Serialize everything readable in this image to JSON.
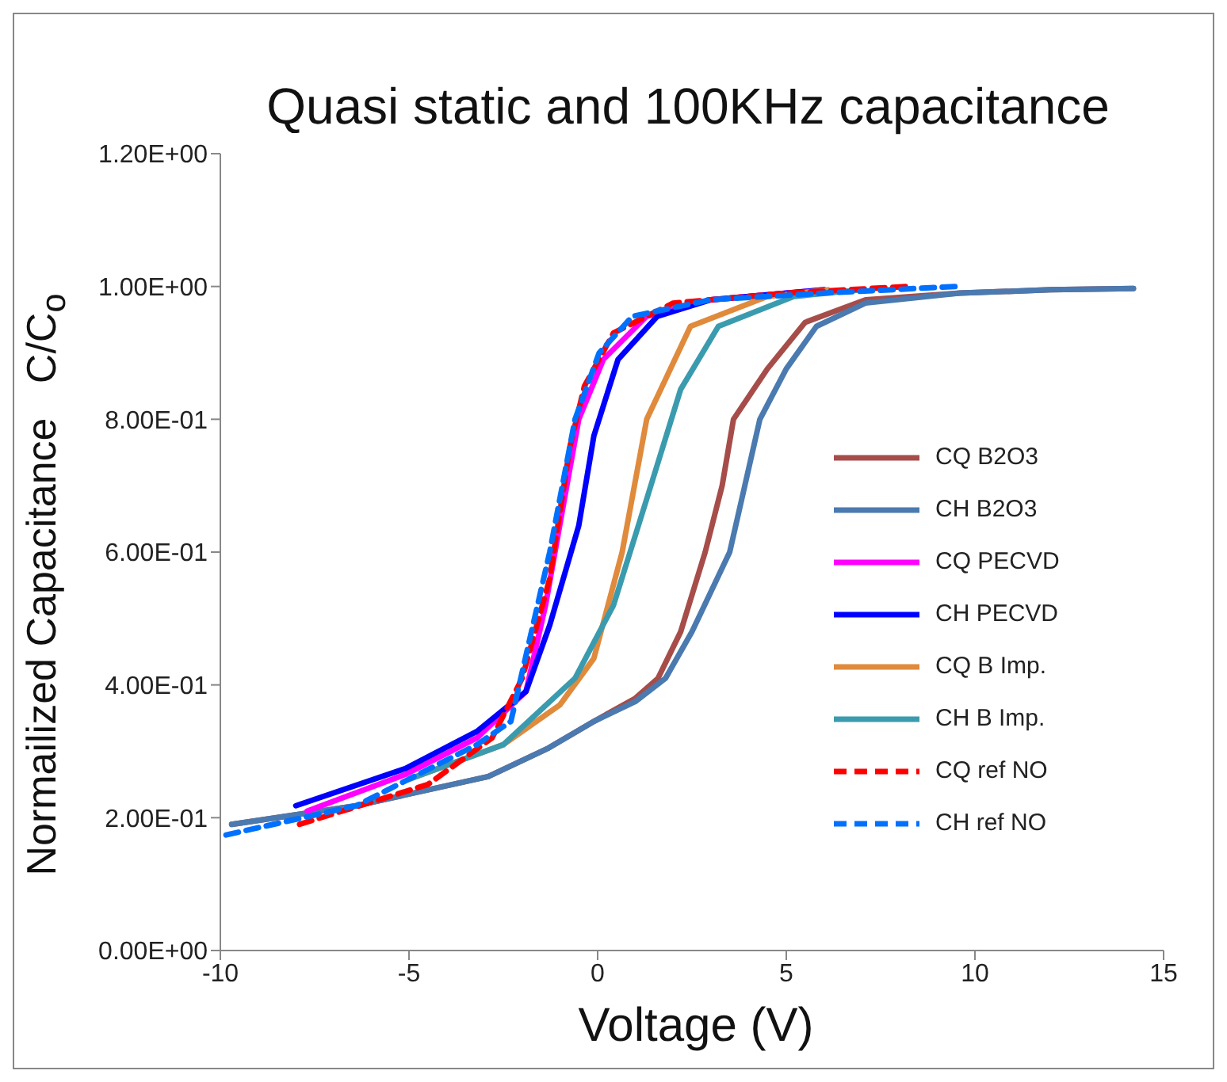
{
  "chart_data": {
    "type": "line",
    "title": "Quasi static and 100KHz capacitance",
    "xlabel": "Voltage (V)",
    "ylabel": "Normailized Capacitance   C/C$_{o}$",
    "xlim": [
      -10,
      15
    ],
    "xticks": [
      -10,
      -5,
      0,
      5,
      10,
      15
    ],
    "ylim": [
      0,
      1.2
    ],
    "yticks": [
      {
        "value": 0,
        "label": "0.00E+00"
      },
      {
        "value": 0.2,
        "label": "2.00E-01"
      },
      {
        "value": 0.4,
        "label": "4.00E-01"
      },
      {
        "value": 0.6,
        "label": "6.00E-01"
      },
      {
        "value": 0.8,
        "label": "8.00E-01"
      },
      {
        "value": 1.0,
        "label": "1.00E+00"
      },
      {
        "value": 1.2,
        "label": "1.20E+00"
      }
    ],
    "grid": false,
    "legend": "right",
    "marker": "none",
    "series": [
      {
        "name": "CQ B2O3",
        "color": "#a64d4a",
        "line_style": "solid",
        "x": [
          -9.7,
          -6.4,
          -2.9,
          -1.3,
          -0.1,
          1.0,
          1.6,
          2.2,
          2.85,
          3.3,
          3.6,
          4.5,
          5.5,
          7.1,
          9.6,
          12,
          14.2
        ],
        "values": [
          0.19,
          0.218,
          0.262,
          0.305,
          0.345,
          0.38,
          0.41,
          0.48,
          0.6,
          0.7,
          0.8,
          0.876,
          0.946,
          0.98,
          0.99,
          0.995,
          0.997
        ]
      },
      {
        "name": "CH B2O3",
        "color": "#4a7ab0",
        "line_style": "solid",
        "x": [
          -9.7,
          -6.4,
          -2.9,
          -1.3,
          -0.1,
          1.0,
          1.8,
          2.5,
          3.5,
          3.9,
          4.3,
          5.0,
          5.8,
          7.1,
          9.6,
          12,
          14.2
        ],
        "values": [
          0.19,
          0.218,
          0.262,
          0.305,
          0.345,
          0.375,
          0.41,
          0.48,
          0.6,
          0.7,
          0.8,
          0.876,
          0.94,
          0.975,
          0.99,
          0.995,
          0.997
        ]
      },
      {
        "name": "CQ PECVD",
        "color": "#ff00ff",
        "line_style": "solid",
        "x": [
          -7.7,
          -5.1,
          -3.2,
          -1.9,
          -1.38,
          -0.88,
          -0.5,
          0.15,
          1.3,
          3,
          6
        ],
        "values": [
          0.21,
          0.265,
          0.32,
          0.39,
          0.52,
          0.68,
          0.8,
          0.89,
          0.955,
          0.98,
          0.995
        ]
      },
      {
        "name": "CH PECVD",
        "color": "#0000ff",
        "line_style": "solid",
        "x": [
          -8.0,
          -5.1,
          -3.2,
          -1.9,
          -1.27,
          -0.5,
          -0.1,
          0.54,
          1.58,
          3,
          6
        ],
        "values": [
          0.218,
          0.274,
          0.33,
          0.39,
          0.49,
          0.64,
          0.775,
          0.89,
          0.955,
          0.98,
          0.995
        ]
      },
      {
        "name": "CQ B Imp.",
        "color": "#e08a3c",
        "line_style": "solid",
        "x": [
          -5.0,
          -2.5,
          -1.0,
          -0.1,
          0.65,
          1.3,
          2.46,
          4.5,
          6.1
        ],
        "values": [
          0.258,
          0.31,
          0.37,
          0.44,
          0.6,
          0.8,
          0.94,
          0.985,
          0.995
        ]
      },
      {
        "name": "CH B Imp.",
        "color": "#3b9bae",
        "line_style": "solid",
        "x": [
          -5.0,
          -2.5,
          -0.6,
          0.42,
          1.3,
          2.2,
          3.2,
          5.2,
          7.0
        ],
        "values": [
          0.258,
          0.31,
          0.41,
          0.52,
          0.68,
          0.845,
          0.94,
          0.985,
          0.995
        ]
      },
      {
        "name": "CQ ref NO",
        "color": "#ff0000",
        "line_style": "dashed",
        "x": [
          -7.9,
          -4.5,
          -2.8,
          -2.0,
          -1.27,
          -0.73,
          -0.35,
          0.42,
          2.0,
          5.0,
          8.2
        ],
        "values": [
          0.19,
          0.25,
          0.32,
          0.41,
          0.56,
          0.76,
          0.85,
          0.93,
          0.975,
          0.99,
          1.0
        ]
      },
      {
        "name": "CH ref NO",
        "color": "#0070ff",
        "line_style": "dashed",
        "x": [
          -9.85,
          -6.4,
          -3.2,
          -2.3,
          -1.27,
          -0.6,
          0.04,
          0.92,
          3.0,
          6.0,
          9.5
        ],
        "values": [
          0.174,
          0.218,
          0.31,
          0.345,
          0.6,
          0.8,
          0.9,
          0.955,
          0.98,
          0.99,
          1.0
        ]
      }
    ]
  }
}
